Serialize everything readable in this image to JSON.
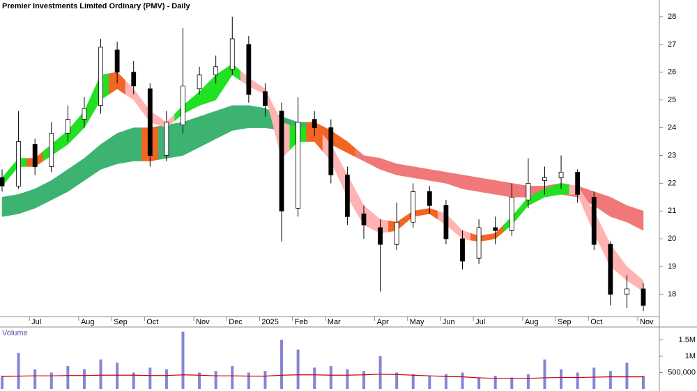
{
  "chart_data": [
    {
      "type": "candlestick",
      "title": "Premier Investments Limited Ordinary (PMV) - Daily",
      "categories": [
        null,
        null,
        "Jul",
        null,
        null,
        "Aug",
        null,
        "Sep",
        null,
        "Oct",
        null,
        null,
        "Nov",
        null,
        "Dec",
        null,
        "2025",
        null,
        "Feb",
        null,
        "Mar",
        null,
        null,
        "Apr",
        null,
        "May",
        null,
        "Jun",
        null,
        "Jul",
        null,
        null,
        "Aug",
        null,
        "Sep",
        null,
        "Oct",
        null,
        null,
        "Nov"
      ],
      "open": [
        22.2,
        21.9,
        23.4,
        22.6,
        23.8,
        24.3,
        24.8,
        26.8,
        26.0,
        25.4,
        23.0,
        24.1,
        25.4,
        25.9,
        26.1,
        27.0,
        25.3,
        24.6,
        21.1,
        24.3,
        24.0,
        22.3,
        20.9,
        20.4,
        19.8,
        20.6,
        21.7,
        21.2,
        20.0,
        19.3,
        20.4,
        20.3,
        21.4,
        22.1,
        22.2,
        22.4,
        21.5,
        19.8,
        18.0,
        18.2
      ],
      "high": [
        22.5,
        24.6,
        23.6,
        24.2,
        24.8,
        25.1,
        27.2,
        27.1,
        26.4,
        25.6,
        24.6,
        27.6,
        26.2,
        26.6,
        28.0,
        27.3,
        25.6,
        24.9,
        25.1,
        24.6,
        24.3,
        22.6,
        21.2,
        20.7,
        21.3,
        22.0,
        21.9,
        21.4,
        20.3,
        20.7,
        20.8,
        22.0,
        22.9,
        22.6,
        23.0,
        22.5,
        21.7,
        19.9,
        18.7,
        18.4
      ],
      "low": [
        21.7,
        21.8,
        22.3,
        22.4,
        23.5,
        24.0,
        24.5,
        25.6,
        25.2,
        22.6,
        22.8,
        23.8,
        25.2,
        25.6,
        25.9,
        24.9,
        24.4,
        19.9,
        20.8,
        23.7,
        22.0,
        20.5,
        20.0,
        18.1,
        19.6,
        20.4,
        20.9,
        19.8,
        18.9,
        19.1,
        19.8,
        20.1,
        21.1,
        21.6,
        21.8,
        21.3,
        19.6,
        17.6,
        17.5,
        17.4
      ],
      "close": [
        21.9,
        23.5,
        22.6,
        23.8,
        24.3,
        24.7,
        26.9,
        26.0,
        25.5,
        23.0,
        24.2,
        25.5,
        25.9,
        26.2,
        27.2,
        25.2,
        24.8,
        21.0,
        24.2,
        24.0,
        22.3,
        20.8,
        20.5,
        19.8,
        20.6,
        21.7,
        21.2,
        20.0,
        19.2,
        20.4,
        20.3,
        21.5,
        22.0,
        22.2,
        22.4,
        21.6,
        19.8,
        18.0,
        18.2,
        17.6
      ],
      "up_color": "#ffffff",
      "down_color": "#000000",
      "bands": [
        {
          "upper": [
            21.5,
            21.6,
            21.8,
            22.1,
            22.5,
            22.9,
            23.4,
            23.8,
            24.0,
            24.0,
            24.1,
            24.2,
            24.4,
            24.6,
            24.8,
            24.8,
            24.7,
            24.4,
            24.2,
            24.2,
            23.9,
            23.5,
            23.0,
            22.9,
            22.7,
            22.6,
            22.5,
            22.4,
            22.3,
            22.2,
            22.1,
            22.0,
            21.9,
            21.9,
            22.0,
            21.9,
            21.7,
            21.5,
            21.2,
            21.0
          ],
          "lower": [
            20.8,
            20.9,
            21.1,
            21.4,
            21.7,
            22.1,
            22.5,
            22.7,
            22.8,
            22.8,
            22.9,
            23.0,
            23.3,
            23.6,
            23.9,
            24.0,
            24.0,
            23.9,
            23.8,
            23.7,
            23.4,
            23.1,
            22.8,
            22.5,
            22.3,
            22.2,
            22.1,
            22.0,
            21.8,
            21.7,
            21.6,
            21.5,
            21.5,
            21.6,
            21.6,
            21.5,
            21.2,
            20.8,
            20.6,
            20.3
          ],
          "colors": [
            "#3cb371",
            "#3cb371",
            "#3cb371",
            "#3cb371",
            "#3cb371",
            "#3cb371",
            "#3cb371",
            "#3cb371",
            "#3cb371",
            "#f26522",
            "#3cb371",
            "#3cb371",
            "#3cb371",
            "#3cb371",
            "#3cb371",
            "#3cb371",
            "#3cb371",
            "#3cb371",
            "#3cb371",
            "#f26522",
            "#f26522",
            "#f26522",
            "#f07878",
            "#f07878",
            "#f07878",
            "#f07878",
            "#f07878",
            "#f07878",
            "#f07878",
            "#f07878",
            "#f07878",
            "#f07878",
            "#f07878",
            "#f07878",
            "#f07878",
            "#f07878",
            "#f07878",
            "#f07878",
            "#f07878",
            "#f07878"
          ]
        },
        {
          "upper": [
            22.2,
            22.9,
            22.9,
            23.4,
            23.9,
            24.6,
            25.9,
            26.0,
            25.4,
            24.6,
            24.2,
            24.8,
            25.3,
            25.9,
            26.3,
            25.8,
            25.4,
            24.2,
            24.0,
            24.1,
            23.4,
            22.3,
            21.2,
            20.7,
            20.6,
            21.0,
            21.1,
            20.9,
            20.3,
            20.1,
            20.2,
            20.8,
            21.5,
            21.8,
            22.0,
            21.9,
            21.0,
            19.8,
            19.0,
            18.5
          ],
          "lower": [
            21.9,
            22.6,
            22.6,
            23.0,
            23.4,
            24.0,
            25.0,
            25.4,
            25.0,
            24.2,
            24.0,
            24.5,
            24.8,
            25.0,
            25.9,
            25.5,
            25.2,
            22.9,
            23.5,
            23.5,
            22.8,
            21.5,
            20.5,
            20.2,
            20.3,
            20.8,
            20.9,
            20.5,
            20.0,
            19.9,
            20.0,
            20.5,
            21.2,
            21.5,
            21.6,
            21.6,
            20.2,
            19.0,
            18.5,
            18.1
          ],
          "colors": [
            "#22e022",
            "#22e022",
            "#f26522",
            "#22e022",
            "#22e022",
            "#22e022",
            "#22e022",
            "#f26522",
            "#ffb3b3",
            "#ffb3b3",
            "#ffb3b3",
            "#22e022",
            "#22e022",
            "#22e022",
            "#22e022",
            "#ffb3b3",
            "#ffb3b3",
            "#ffb3b3",
            "#22e022",
            "#f26522",
            "#ffb3b3",
            "#ffb3b3",
            "#ffb3b3",
            "#ffb3b3",
            "#f26522",
            "#f26522",
            "#f26522",
            "#ffb3b3",
            "#ffb3b3",
            "#f26522",
            "#f26522",
            "#22e022",
            "#22e022",
            "#22e022",
            "#22e022",
            "#ffb3b3",
            "#ffb3b3",
            "#ffb3b3",
            "#ffb3b3",
            "#ffb3b3"
          ]
        }
      ],
      "ylim": [
        17.2,
        28.6
      ],
      "yticks": [
        18,
        19,
        20,
        21,
        22,
        23,
        24,
        25,
        26,
        27,
        28
      ]
    },
    {
      "type": "bar",
      "title": "Volume",
      "values": [
        400000,
        1100000,
        600000,
        500000,
        700000,
        600000,
        900000,
        800000,
        500000,
        650000,
        600000,
        1750000,
        500000,
        550000,
        700000,
        500000,
        550000,
        1500000,
        1200000,
        650000,
        700000,
        600000,
        550000,
        1000000,
        500000,
        450000,
        400000,
        450000,
        500000,
        350000,
        400000,
        350000,
        450000,
        900000,
        600000,
        500000,
        650000,
        550000,
        800000,
        400000
      ],
      "color": "#8585d6",
      "average": [
        380000,
        390000,
        400000,
        400000,
        410000,
        410000,
        420000,
        420000,
        420000,
        410000,
        410000,
        430000,
        420000,
        400000,
        400000,
        390000,
        390000,
        420000,
        430000,
        430000,
        420000,
        420000,
        430000,
        450000,
        440000,
        420000,
        400000,
        380000,
        370000,
        340000,
        320000,
        310000,
        320000,
        340000,
        350000,
        350000,
        360000,
        370000,
        370000,
        370000
      ],
      "average_color": "#cc0000",
      "ylim": [
        0,
        1850000
      ],
      "yticks": [
        {
          "value": 500000,
          "label": "500,000"
        },
        {
          "value": 1000000,
          "label": "1M"
        },
        {
          "value": 1500000,
          "label": "1.5M"
        }
      ]
    }
  ]
}
